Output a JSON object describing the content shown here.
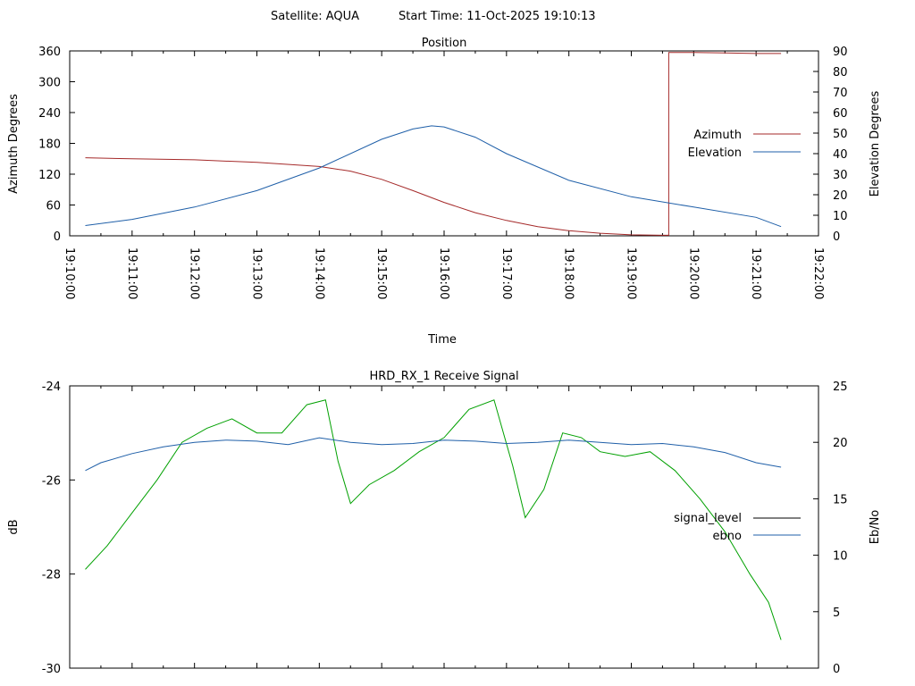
{
  "header": {
    "satellite": "Satellite: AQUA",
    "start_time": "Start Time: 11-Oct-2025 19:10:13"
  },
  "colors": {
    "azimuth": "#a52a2a",
    "elevation": "#1f5fa8",
    "signal_level_legend": "#000000",
    "ebno": "#1f5fa8",
    "signal_trace": "#00a000"
  },
  "chart_data": [
    {
      "type": "line",
      "title": "Position",
      "xlabel": "Time",
      "ylabel": "Azimuth Degrees",
      "y2label": "Elevation Degrees",
      "x_tick_labels": [
        "19:10:00",
        "19:11:00",
        "19:12:00",
        "19:13:00",
        "19:14:00",
        "19:15:00",
        "19:16:00",
        "19:17:00",
        "19:18:00",
        "19:19:00",
        "19:20:00",
        "19:21:00",
        "19:22:00"
      ],
      "x_range_min": [
        0,
        12
      ],
      "ylim": [
        0,
        360
      ],
      "y2lim": [
        0,
        90
      ],
      "y_ticks": [
        0,
        60,
        120,
        180,
        240,
        300,
        360
      ],
      "y2_ticks": [
        0,
        10,
        20,
        30,
        40,
        50,
        60,
        70,
        80,
        90
      ],
      "legend_position": "right",
      "series": [
        {
          "name": "Azimuth",
          "axis": "left",
          "x_min": [
            0.25,
            1,
            2,
            3,
            4,
            4.5,
            5,
            5.5,
            6,
            6.5,
            7,
            7.5,
            8,
            8.5,
            9,
            9.5,
            9.6,
            9.6,
            10,
            10.5,
            11,
            11.4
          ],
          "values": [
            152,
            150,
            148,
            143,
            135,
            126,
            110,
            88,
            65,
            45,
            30,
            18,
            10,
            5,
            2,
            1,
            1,
            357,
            357,
            356,
            355,
            355
          ]
        },
        {
          "name": "Elevation",
          "axis": "right",
          "x_min": [
            0.25,
            1,
            2,
            3,
            4,
            5,
            5.5,
            5.8,
            6,
            6.5,
            7,
            8,
            9,
            10,
            11,
            11.4
          ],
          "values": [
            5,
            8,
            14,
            22,
            33,
            47,
            52,
            53.5,
            53,
            48,
            40,
            27,
            19,
            14,
            9,
            4.5
          ]
        }
      ]
    },
    {
      "type": "line",
      "title": "HRD_RX_1 Receive Signal",
      "ylabel": "dB",
      "y2label": "Eb/No",
      "ylim": [
        -30,
        -24
      ],
      "y2lim": [
        0,
        25
      ],
      "y_ticks": [
        -30,
        -28,
        -26,
        -24
      ],
      "y2_ticks": [
        0,
        5,
        10,
        15,
        20,
        25
      ],
      "x_range_min": [
        0,
        12
      ],
      "x_tick_labels": [],
      "legend_position": "right",
      "series": [
        {
          "name": "signal_level",
          "axis": "left",
          "x_min": [
            0.25,
            0.6,
            1,
            1.4,
            1.8,
            2.2,
            2.6,
            3,
            3.4,
            3.8,
            4.1,
            4.3,
            4.5,
            4.8,
            5.2,
            5.6,
            6,
            6.4,
            6.8,
            7.1,
            7.3,
            7.6,
            7.9,
            8.2,
            8.5,
            8.9,
            9.3,
            9.7,
            10.1,
            10.5,
            10.9,
            11.2,
            11.4
          ],
          "values": [
            -27.9,
            -27.4,
            -26.7,
            -26.0,
            -25.2,
            -24.9,
            -24.7,
            -25.0,
            -25.0,
            -24.4,
            -24.3,
            -25.6,
            -26.5,
            -26.1,
            -25.8,
            -25.4,
            -25.1,
            -24.5,
            -24.3,
            -25.7,
            -26.8,
            -26.2,
            -25.0,
            -25.1,
            -25.4,
            -25.5,
            -25.4,
            -25.8,
            -26.4,
            -27.1,
            -28.0,
            -28.6,
            -29.4
          ]
        },
        {
          "name": "ebno",
          "axis": "right",
          "x_min": [
            0.25,
            0.5,
            1,
            1.5,
            2,
            2.5,
            3,
            3.5,
            4,
            4.5,
            5,
            5.5,
            6,
            6.5,
            7,
            7.5,
            8,
            8.5,
            9,
            9.5,
            10,
            10.5,
            11,
            11.4
          ],
          "values": [
            17.5,
            18.2,
            19,
            19.6,
            20,
            20.2,
            20.1,
            19.8,
            20.4,
            20.0,
            19.8,
            19.9,
            20.2,
            20.1,
            19.9,
            20.0,
            20.2,
            20.0,
            19.8,
            19.9,
            19.6,
            19.1,
            18.2,
            17.8
          ]
        }
      ]
    }
  ]
}
